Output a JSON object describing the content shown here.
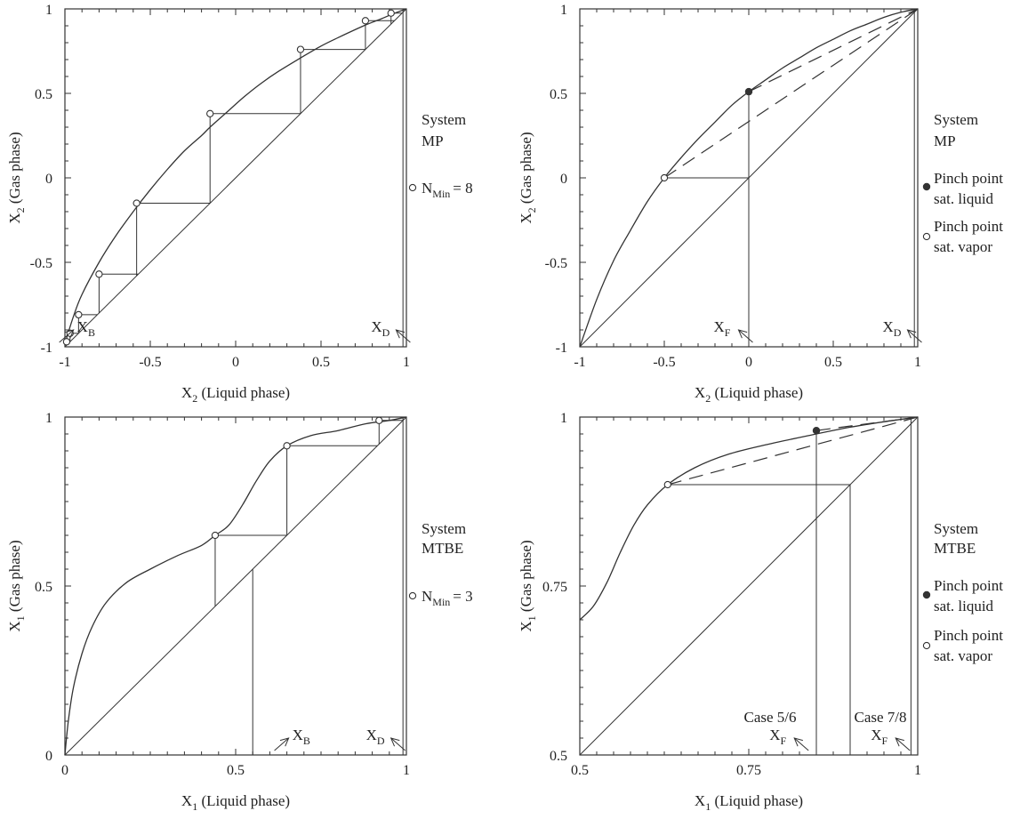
{
  "chart_data": [
    {
      "id": "mp_min",
      "type": "line",
      "title": "",
      "xlabel": "X",
      "xlabel_sub": "2",
      "xlabel_rest": " (Liquid phase)",
      "ylabel": "X",
      "ylabel_sub": "2",
      "ylabel_rest": " (Gas phase)",
      "xlim": [
        -1,
        1
      ],
      "ylim": [
        -1,
        1
      ],
      "xticks": [
        -1,
        -0.5,
        0,
        0.5,
        1
      ],
      "xtick_labels": [
        "-1",
        "-0.5",
        "0",
        "0.5",
        "1"
      ],
      "yticks": [
        -1,
        -0.5,
        0,
        0.5,
        1
      ],
      "ytick_labels": [
        "-1",
        "-0.5",
        "0",
        "0.5",
        "1"
      ],
      "equilibrium_curve": [
        [
          -1,
          -0.98
        ],
        [
          -0.95,
          -0.82
        ],
        [
          -0.9,
          -0.69
        ],
        [
          -0.8,
          -0.5
        ],
        [
          -0.7,
          -0.34
        ],
        [
          -0.6,
          -0.2
        ],
        [
          -0.5,
          -0.07
        ],
        [
          -0.4,
          0.05
        ],
        [
          -0.3,
          0.16
        ],
        [
          -0.2,
          0.25
        ],
        [
          -0.15,
          0.3
        ],
        [
          -0.05,
          0.39
        ],
        [
          0.05,
          0.48
        ],
        [
          0.15,
          0.56
        ],
        [
          0.25,
          0.63
        ],
        [
          0.38,
          0.71
        ],
        [
          0.5,
          0.78
        ],
        [
          0.6,
          0.83
        ],
        [
          0.75,
          0.9
        ],
        [
          0.85,
          0.94
        ],
        [
          0.92,
          0.97
        ],
        [
          1,
          1
        ]
      ],
      "stage_points": [
        [
          0.91,
          0.975
        ],
        [
          0.76,
          0.93
        ],
        [
          0.38,
          0.76
        ],
        [
          -0.15,
          0.38
        ],
        [
          -0.58,
          -0.15
        ],
        [
          -0.8,
          -0.57
        ],
        [
          -0.92,
          -0.81
        ],
        [
          -0.97,
          -0.92
        ],
        [
          -0.99,
          -0.97
        ]
      ],
      "boundary_x": 0.98,
      "labels": {
        "system": "System",
        "system_name": "MP",
        "nmin_label": "N",
        "nmin_sub": "Min",
        "nmin_value": "= 8"
      },
      "annotations": [
        {
          "text": "X",
          "sub": "B",
          "x": -0.96,
          "y": -0.96
        },
        {
          "text": "X",
          "sub": "D",
          "x": 0.95,
          "y": -0.96
        }
      ]
    },
    {
      "id": "mp_pinch",
      "type": "line",
      "title": "",
      "xlabel": "X",
      "xlabel_sub": "2",
      "xlabel_rest": " (Liquid phase)",
      "ylabel": "X",
      "ylabel_sub": "2",
      "ylabel_rest": " (Gas phase)",
      "xlim": [
        -1,
        1
      ],
      "ylim": [
        -1,
        1
      ],
      "xticks": [
        -1,
        -0.5,
        0,
        0.5,
        1
      ],
      "xtick_labels": [
        "-1",
        "-0.5",
        "0",
        "0.5",
        "1"
      ],
      "yticks": [
        -1,
        -0.5,
        0,
        0.5,
        1
      ],
      "ytick_labels": [
        "-1",
        "-0.5",
        "0",
        "0.5",
        "1"
      ],
      "equilibrium_curve": [
        [
          -1,
          -1
        ],
        [
          -0.9,
          -0.72
        ],
        [
          -0.8,
          -0.49
        ],
        [
          -0.7,
          -0.31
        ],
        [
          -0.6,
          -0.14
        ],
        [
          -0.5,
          0
        ],
        [
          -0.4,
          0.12
        ],
        [
          -0.3,
          0.23
        ],
        [
          -0.2,
          0.33
        ],
        [
          -0.1,
          0.43
        ],
        [
          0,
          0.51
        ],
        [
          0.1,
          0.58
        ],
        [
          0.2,
          0.65
        ],
        [
          0.3,
          0.71
        ],
        [
          0.4,
          0.77
        ],
        [
          0.5,
          0.82
        ],
        [
          0.6,
          0.87
        ],
        [
          0.7,
          0.91
        ],
        [
          0.8,
          0.95
        ],
        [
          0.9,
          0.98
        ],
        [
          1,
          1
        ]
      ],
      "feed_x": 0,
      "pinch_sat_liquid": [
        0,
        0.51
      ],
      "pinch_sat_vapor": [
        -0.5,
        0
      ],
      "boundary_x": 0.98,
      "labels": {
        "system": "System",
        "system_name": "MP",
        "pinch1_line1": "Pinch point",
        "pinch1_line2": "sat. liquid",
        "pinch2_line1": "Pinch point",
        "pinch2_line2": "sat. vapor"
      },
      "annotations": [
        {
          "text": "X",
          "sub": "F",
          "x": -0.05,
          "y": -0.96
        },
        {
          "text": "X",
          "sub": "D",
          "x": 0.95,
          "y": -0.96
        }
      ]
    },
    {
      "id": "mtbe_min",
      "type": "line",
      "title": "",
      "xlabel": "X",
      "xlabel_sub": "1",
      "xlabel_rest": " (Liquid phase)",
      "ylabel": "X",
      "ylabel_sub": "1",
      "ylabel_rest": " (Gas phase)",
      "xlim": [
        0,
        1
      ],
      "ylim": [
        0,
        1
      ],
      "xticks": [
        0,
        0.5,
        1
      ],
      "xtick_labels": [
        "0",
        "0.5",
        "1"
      ],
      "yticks": [
        0,
        0.5,
        1
      ],
      "ytick_labels": [
        "0",
        "0.5",
        "1"
      ],
      "equilibrium_curve": [
        [
          0,
          0
        ],
        [
          0.01,
          0.1
        ],
        [
          0.025,
          0.2
        ],
        [
          0.05,
          0.3
        ],
        [
          0.08,
          0.38
        ],
        [
          0.12,
          0.45
        ],
        [
          0.18,
          0.51
        ],
        [
          0.25,
          0.55
        ],
        [
          0.33,
          0.59
        ],
        [
          0.4,
          0.62
        ],
        [
          0.44,
          0.65
        ],
        [
          0.48,
          0.68
        ],
        [
          0.52,
          0.74
        ],
        [
          0.56,
          0.81
        ],
        [
          0.6,
          0.87
        ],
        [
          0.65,
          0.915
        ],
        [
          0.72,
          0.945
        ],
        [
          0.8,
          0.96
        ],
        [
          0.88,
          0.98
        ],
        [
          0.95,
          0.99
        ],
        [
          1,
          1
        ]
      ],
      "stage_points": [
        [
          0.92,
          0.99
        ],
        [
          0.65,
          0.915
        ],
        [
          0.44,
          0.65
        ]
      ],
      "stage_end": 0.44,
      "feed_x": 0.55,
      "boundary_x": 0.99,
      "labels": {
        "system": "System",
        "system_name": "MTBE",
        "nmin_label": "N",
        "nmin_sub": "Min",
        "nmin_value": "= 3"
      },
      "annotations": [
        {
          "text": "X",
          "sub": "B",
          "x": 0.65,
          "y": 0.03
        },
        {
          "text": "X",
          "sub": "D",
          "x": 0.96,
          "y": 0.03
        }
      ]
    },
    {
      "id": "mtbe_pinch",
      "type": "line",
      "title": "",
      "xlabel": "X",
      "xlabel_sub": "1",
      "xlabel_rest": " (Liquid phase)",
      "ylabel": "X",
      "ylabel_sub": "1",
      "ylabel_rest": " (Gas phase)",
      "xlim": [
        0.5,
        1
      ],
      "ylim": [
        0.5,
        1
      ],
      "xticks": [
        0.5,
        0.75,
        1
      ],
      "xtick_labels": [
        "0.5",
        "0.75",
        "1"
      ],
      "yticks": [
        0.5,
        0.75,
        1
      ],
      "ytick_labels": [
        "0.5",
        "0.75",
        "1"
      ],
      "equilibrium_curve": [
        [
          0.5,
          0.7
        ],
        [
          0.52,
          0.72
        ],
        [
          0.54,
          0.755
        ],
        [
          0.56,
          0.8
        ],
        [
          0.58,
          0.84
        ],
        [
          0.6,
          0.87
        ],
        [
          0.63,
          0.9
        ],
        [
          0.67,
          0.925
        ],
        [
          0.72,
          0.945
        ],
        [
          0.78,
          0.96
        ],
        [
          0.85,
          0.975
        ],
        [
          0.9,
          0.985
        ],
        [
          0.95,
          0.993
        ],
        [
          1,
          1
        ]
      ],
      "feed_case56": 0.85,
      "feed_case78": 0.9,
      "pinch_sat_liquid": [
        0.85,
        0.98
      ],
      "pinch_sat_vapor": [
        0.63,
        0.9
      ],
      "boundary_x": 0.99,
      "labels": {
        "system": "System",
        "system_name": "MTBE",
        "pinch1_line1": "Pinch point",
        "pinch1_line2": "sat. liquid",
        "pinch2_line1": "Pinch point",
        "pinch2_line2": "sat. vapor",
        "case56": "Case 5/6",
        "case78": "Case 7/8"
      },
      "annotations": [
        {
          "text": "X",
          "sub": "F",
          "x": 0.82,
          "y": 0.52
        },
        {
          "text": "X",
          "sub": "F",
          "x": 0.97,
          "y": 0.52
        }
      ]
    }
  ]
}
